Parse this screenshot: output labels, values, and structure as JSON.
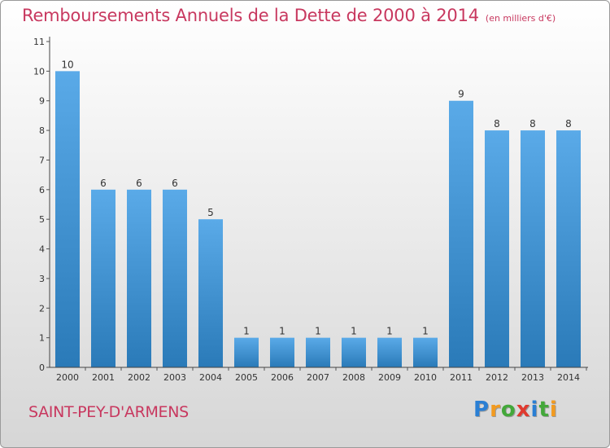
{
  "title": "Remboursements Annuels de la Dette de 2000 à 2014",
  "subtitle": "(en milliers d'€)",
  "commune": "SAINT-PEY-D'ARMENS",
  "brand": {
    "letters": [
      "P",
      "r",
      "o",
      "x",
      "i",
      "t",
      "i"
    ],
    "colors": [
      "#2a7fd4",
      "#f29a1f",
      "#43a83a",
      "#e03a2f",
      "#2a7fd4",
      "#43a83a",
      "#f29a1f"
    ]
  },
  "colors": {
    "bar": "#5aaae8",
    "bar_dark": "#2a7ab8",
    "text": "#c8385f"
  },
  "chart_data": {
    "type": "bar",
    "categories": [
      "2000",
      "2001",
      "2002",
      "2003",
      "2004",
      "2005",
      "2006",
      "2007",
      "2008",
      "2009",
      "2010",
      "2011",
      "2012",
      "2013",
      "2014"
    ],
    "values": [
      10,
      6,
      6,
      6,
      5,
      1,
      1,
      1,
      1,
      1,
      1,
      9,
      8,
      8,
      8
    ],
    "data_labels": [
      "10",
      "6",
      "6",
      "6",
      "5",
      "1",
      "1",
      "1",
      "1",
      "1",
      "1",
      "9",
      "8",
      "8",
      "8"
    ],
    "yticks": [
      "0",
      "1",
      "2",
      "3",
      "4",
      "5",
      "6",
      "7",
      "8",
      "9",
      "10",
      "11"
    ],
    "ylim": [
      0,
      11
    ],
    "xlabel": "",
    "ylabel": "",
    "grid": false
  }
}
